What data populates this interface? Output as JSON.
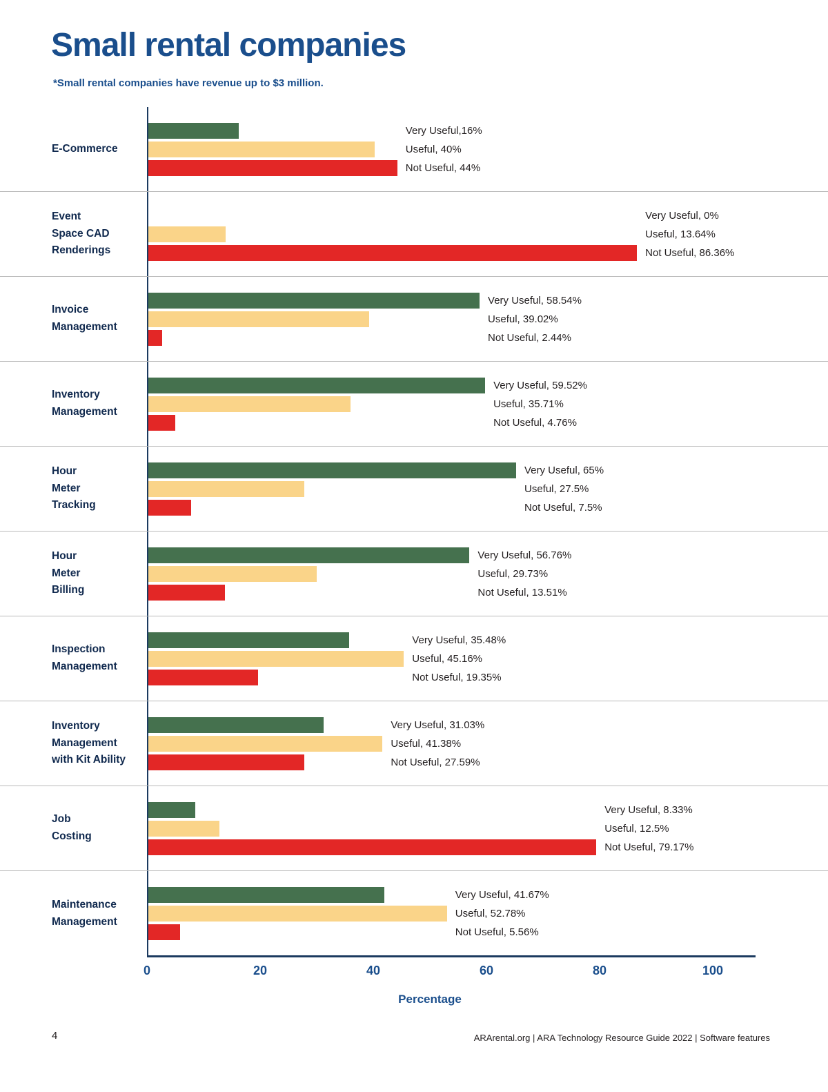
{
  "chart_data": {
    "type": "bar",
    "orientation": "horizontal",
    "title": "Small rental companies",
    "subtitle": "*Small rental companies have revenue up to $3 million.",
    "xlabel": "Percentage",
    "xlim": [
      0,
      100
    ],
    "xticks": [
      0,
      20,
      40,
      60,
      80,
      100
    ],
    "grid": false,
    "legend": "none",
    "row_separators": true,
    "series": [
      "Very Useful",
      "Useful",
      "Not Useful"
    ],
    "colors": {
      "very_useful": "#45714E",
      "useful": "#FAD489",
      "not_useful": "#E32726",
      "accent_blue": "#1A4E8C"
    },
    "categories": [
      {
        "label": "E-Commerce",
        "label_display": "E-Commerce",
        "values": [
          16,
          40,
          44
        ],
        "value_labels": [
          "Very Useful,16%",
          "Useful, 40%",
          "Not Useful, 44%"
        ]
      },
      {
        "label": "Event Space CAD Renderings",
        "label_display": "Event\nSpace CAD\nRenderings",
        "values": [
          0,
          13.64,
          86.36
        ],
        "value_labels": [
          "Very Useful, 0%",
          "Useful, 13.64%",
          "Not Useful, 86.36%"
        ]
      },
      {
        "label": "Invoice Management",
        "label_display": "Invoice\nManagement",
        "values": [
          58.54,
          39.02,
          2.44
        ],
        "value_labels": [
          "Very Useful, 58.54%",
          "Useful, 39.02%",
          "Not Useful, 2.44%"
        ]
      },
      {
        "label": "Inventory Management",
        "label_display": "Inventory\nManagement",
        "values": [
          59.52,
          35.71,
          4.76
        ],
        "value_labels": [
          "Very Useful, 59.52%",
          "Useful, 35.71%",
          "Not Useful, 4.76%"
        ]
      },
      {
        "label": "Hour Meter Tracking",
        "label_display": "Hour\nMeter\nTracking",
        "values": [
          65,
          27.5,
          7.5
        ],
        "value_labels": [
          "Very Useful, 65%",
          "Useful, 27.5%",
          "Not Useful, 7.5%"
        ]
      },
      {
        "label": "Hour Meter Billing",
        "label_display": "Hour\nMeter\nBilling",
        "values": [
          56.76,
          29.73,
          13.51
        ],
        "value_labels": [
          "Very Useful, 56.76%",
          "Useful, 29.73%",
          "Not Useful, 13.51%"
        ]
      },
      {
        "label": "Inspection Management",
        "label_display": "Inspection\nManagement",
        "values": [
          35.48,
          45.16,
          19.35
        ],
        "value_labels": [
          "Very Useful, 35.48%",
          "Useful, 45.16%",
          "Not Useful, 19.35%"
        ]
      },
      {
        "label": "Inventory Management with Kit Ability",
        "label_display": "Inventory\nManagement\nwith Kit Ability",
        "values": [
          31.03,
          41.38,
          27.59
        ],
        "value_labels": [
          "Very Useful, 31.03%",
          "Useful, 41.38%",
          "Not Useful, 27.59%"
        ]
      },
      {
        "label": "Job Costing",
        "label_display": "Job\nCosting",
        "values": [
          8.33,
          12.5,
          79.17
        ],
        "value_labels": [
          "Very Useful, 8.33%",
          "Useful, 12.5%",
          "Not Useful, 79.17%"
        ]
      },
      {
        "label": "Maintenance Management",
        "label_display": "Maintenance\nManagement",
        "values": [
          41.67,
          52.78,
          5.56
        ],
        "value_labels": [
          "Very Useful, 41.67%",
          "Useful, 52.78%",
          "Not Useful, 5.56%"
        ]
      }
    ]
  },
  "footer": {
    "page_number": "4",
    "credit": "ARArental.org   |   ARA Technology Resource Guide 2022   |   Software features"
  }
}
